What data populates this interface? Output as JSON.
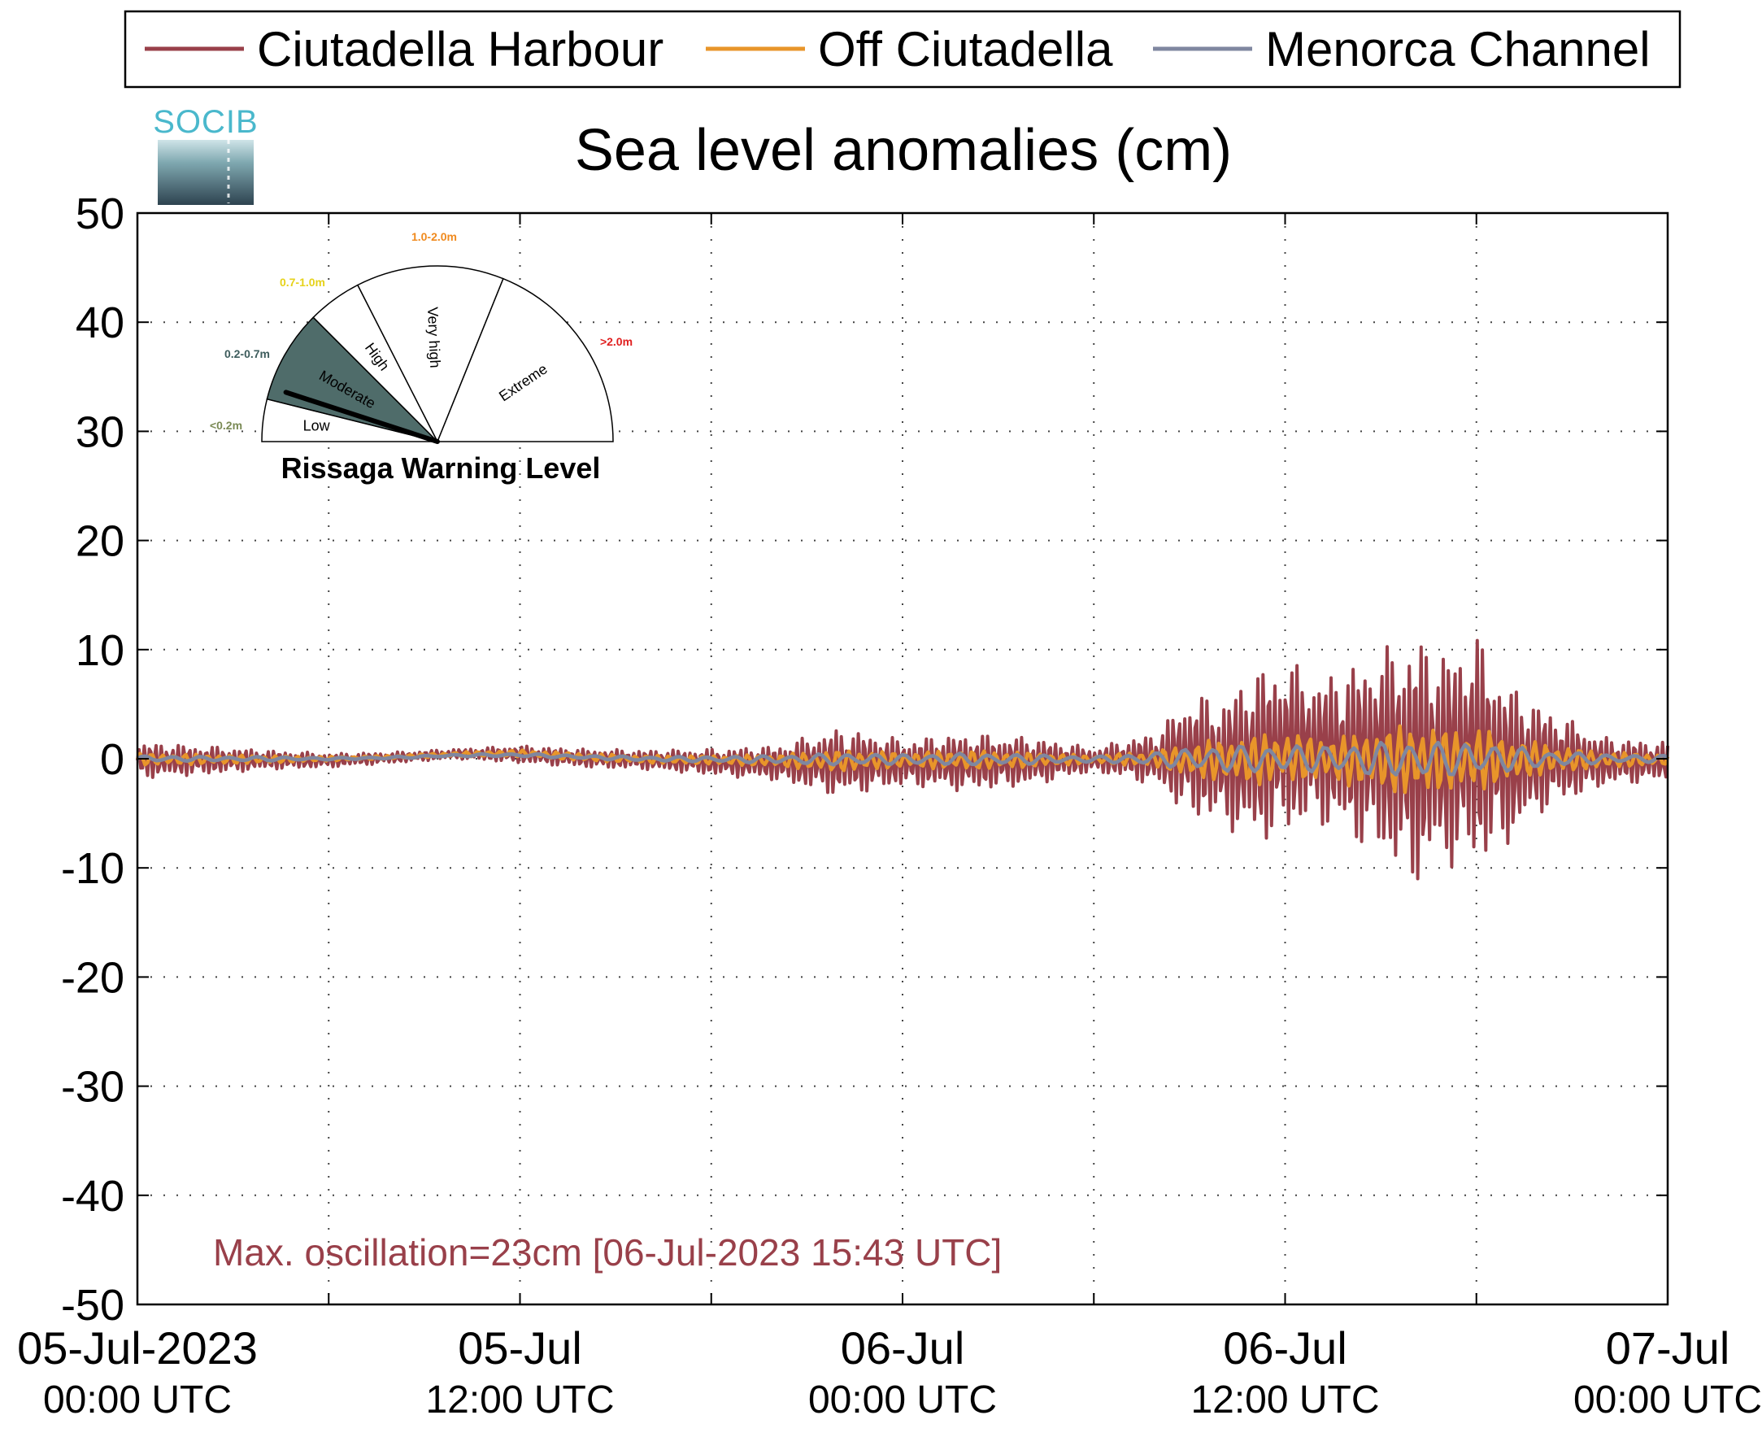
{
  "chart_data": {
    "type": "line",
    "title": "Sea level anomalies (cm)",
    "ylim": [
      -50,
      50
    ],
    "yticks": [
      50,
      40,
      30,
      20,
      10,
      0,
      -10,
      -20,
      -30,
      -40,
      -50
    ],
    "xlim": [
      "2023-07-05T00:00Z",
      "2023-07-07T00:00Z"
    ],
    "grid": true,
    "legend_position": "top",
    "xticks": [
      {
        "time": "2023-07-05T00:00Z",
        "date": "05-Jul-2023",
        "time_label": "00:00 UTC"
      },
      {
        "time": "2023-07-05T12:00Z",
        "date": "05-Jul",
        "time_label": "12:00 UTC"
      },
      {
        "time": "2023-07-06T00:00Z",
        "date": "06-Jul",
        "time_label": "00:00 UTC"
      },
      {
        "time": "2023-07-06T12:00Z",
        "date": "06-Jul",
        "time_label": "12:00 UTC"
      },
      {
        "time": "2023-07-07T00:00Z",
        "date": "07-Jul",
        "time_label": "00:00 UTC"
      }
    ],
    "x": [
      "2023-07-05T00:00Z",
      "2023-07-05T02:00Z",
      "2023-07-05T04:00Z",
      "2023-07-05T06:00Z",
      "2023-07-05T08:00Z",
      "2023-07-05T10:00Z",
      "2023-07-05T12:00Z",
      "2023-07-05T14:00Z",
      "2023-07-05T16:00Z",
      "2023-07-05T18:00Z",
      "2023-07-05T20:00Z",
      "2023-07-05T22:00Z",
      "2023-07-06T00:00Z",
      "2023-07-06T02:00Z",
      "2023-07-06T04:00Z",
      "2023-07-06T06:00Z",
      "2023-07-06T08:00Z",
      "2023-07-06T09:00Z",
      "2023-07-06T10:00Z",
      "2023-07-06T11:00Z",
      "2023-07-06T12:00Z",
      "2023-07-06T13:00Z",
      "2023-07-06T14:00Z",
      "2023-07-06T15:00Z",
      "2023-07-06T16:00Z",
      "2023-07-06T17:00Z",
      "2023-07-06T18:00Z",
      "2023-07-06T19:00Z",
      "2023-07-06T20:00Z",
      "2023-07-06T22:00Z",
      "2023-07-07T00:00Z"
    ],
    "series": [
      {
        "name": "Ciutadella Harbour",
        "color": "#99404a",
        "upper": [
          1.5,
          1.2,
          0.8,
          0.5,
          0.6,
          0.9,
          1.2,
          0.9,
          0.8,
          0.9,
          1.2,
          2.8,
          1.8,
          2.3,
          2.0,
          1.0,
          2.5,
          6.0,
          5.5,
          8.0,
          9.3,
          7.5,
          8.5,
          10.0,
          11.5,
          10.0,
          11.5,
          7.0,
          5.0,
          2.0,
          1.5
        ],
        "lower": [
          -1.8,
          -1.5,
          -1.0,
          -0.8,
          -0.4,
          0.0,
          -0.4,
          -0.8,
          -1.0,
          -1.5,
          -2.0,
          -3.5,
          -2.5,
          -3.0,
          -2.5,
          -1.2,
          -2.5,
          -5.5,
          -6.0,
          -8.0,
          -7.0,
          -6.0,
          -7.5,
          -9.0,
          -11.8,
          -10.0,
          -10.0,
          -8.0,
          -5.0,
          -2.5,
          -2.0
        ]
      },
      {
        "name": "Off Ciutadella",
        "color": "#e8952a",
        "upper": [
          0.5,
          0.4,
          0.3,
          0.2,
          0.3,
          0.6,
          0.8,
          0.5,
          0.3,
          0.3,
          0.4,
          0.8,
          0.6,
          0.8,
          0.6,
          0.3,
          0.8,
          1.5,
          1.8,
          2.2,
          2.5,
          2.0,
          2.2,
          2.8,
          3.2,
          2.8,
          3.0,
          2.0,
          1.5,
          0.6,
          0.5
        ],
        "lower": [
          -0.6,
          -0.5,
          -0.4,
          -0.2,
          0.0,
          0.2,
          0.2,
          -0.2,
          -0.4,
          -0.5,
          -0.7,
          -1.2,
          -0.8,
          -1.0,
          -0.8,
          -0.4,
          -0.8,
          -1.8,
          -2.0,
          -2.5,
          -2.2,
          -2.0,
          -2.5,
          -3.0,
          -3.5,
          -3.0,
          -3.0,
          -2.2,
          -1.5,
          -0.8,
          -0.6
        ]
      },
      {
        "name": "Menorca Channel",
        "color": "#7f87a0",
        "upper": [
          0.3,
          0.2,
          0.2,
          0.1,
          0.2,
          0.4,
          0.5,
          0.3,
          0.2,
          0.2,
          0.3,
          0.5,
          0.4,
          0.5,
          0.4,
          0.2,
          0.6,
          1.0,
          1.2,
          1.2,
          1.3,
          1.2,
          1.3,
          1.5,
          1.8,
          1.5,
          1.5,
          1.2,
          0.8,
          0.4,
          0.3
        ],
        "lower": [
          -0.3,
          -0.2,
          -0.2,
          -0.1,
          0.0,
          0.2,
          0.2,
          0.0,
          -0.2,
          -0.3,
          -0.4,
          -0.6,
          -0.5,
          -0.6,
          -0.5,
          -0.3,
          -0.6,
          -1.0,
          -1.2,
          -1.3,
          -1.2,
          -1.2,
          -1.4,
          -1.6,
          -1.8,
          -1.6,
          -1.5,
          -1.2,
          -0.8,
          -0.4,
          -0.3
        ]
      }
    ],
    "annotation": "Max. oscillation=23cm [06-Jul-2023 15:43 UTC]",
    "annotation_color": "#99404a"
  },
  "logo": {
    "text": "SOCIB",
    "color": "#4ab8cc"
  },
  "gauge": {
    "title": "Rissaga Warning Level",
    "level": "Moderate",
    "sectors": [
      {
        "name": "Low",
        "range": "<0.2m",
        "range_color": "#7a8a55",
        "fill": "#ffffff"
      },
      {
        "name": "Moderate",
        "range": "0.2-0.7m",
        "range_color": "#3d5c5c",
        "fill": "#4f6c6a"
      },
      {
        "name": "High",
        "range": "0.7-1.0m",
        "range_color": "#e6d21a",
        "fill": "#ffffff"
      },
      {
        "name": "Very high",
        "range": "1.0-2.0m",
        "range_color": "#f08a1e",
        "fill": "#ffffff"
      },
      {
        "name": "Extreme",
        "range": ">2.0m",
        "range_color": "#e02020",
        "fill": "#ffffff"
      }
    ]
  }
}
